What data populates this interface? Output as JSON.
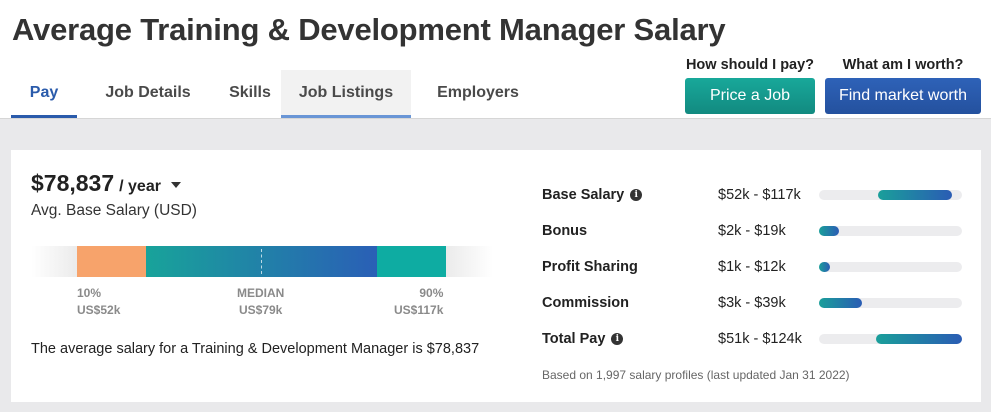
{
  "page": {
    "title": "Average Training & Development Manager Salary"
  },
  "tabs": [
    {
      "label": "Pay"
    },
    {
      "label": "Job Details"
    },
    {
      "label": "Skills"
    },
    {
      "label": "Job Listings"
    },
    {
      "label": "Employers"
    }
  ],
  "cta": {
    "price": {
      "question": "How should I pay?",
      "button": "Price a Job"
    },
    "market": {
      "question": "What am I worth?",
      "button": "Find market worth"
    }
  },
  "salary": {
    "amount": "$78,837",
    "period": "/ year",
    "subtitle": "Avg. Base Salary (USD)",
    "percentiles": {
      "p10": {
        "label": "10%",
        "value": "US$52k"
      },
      "median": {
        "label": "MEDIAN",
        "value": "US$79k"
      },
      "p90": {
        "label": "90%",
        "value": "US$117k"
      }
    },
    "summary": "The average salary for a Training & Development Manager is $78,837"
  },
  "compensation": [
    {
      "label": "Base Salary",
      "info": true,
      "range": "$52k - $117k",
      "fill_start": 0.41,
      "fill_end": 0.93
    },
    {
      "label": "Bonus",
      "info": false,
      "range": "$2k - $19k",
      "fill_start": 0.0,
      "fill_end": 0.14
    },
    {
      "label": "Profit Sharing",
      "info": false,
      "range": "$1k - $12k",
      "fill_start": 0.0,
      "fill_end": 0.08
    },
    {
      "label": "Commission",
      "info": false,
      "range": "$3k - $39k",
      "fill_start": 0.0,
      "fill_end": 0.3
    },
    {
      "label": "Total Pay",
      "info": true,
      "range": "$51k - $124k",
      "fill_start": 0.4,
      "fill_end": 1.0
    }
  ],
  "footnote": "Based on 1,997 salary profiles (last updated Jan 31 2022)",
  "colors": {
    "brand_blue": "#2a5bab",
    "teal": "#128a80",
    "low_percentile": "#f7a36b"
  }
}
